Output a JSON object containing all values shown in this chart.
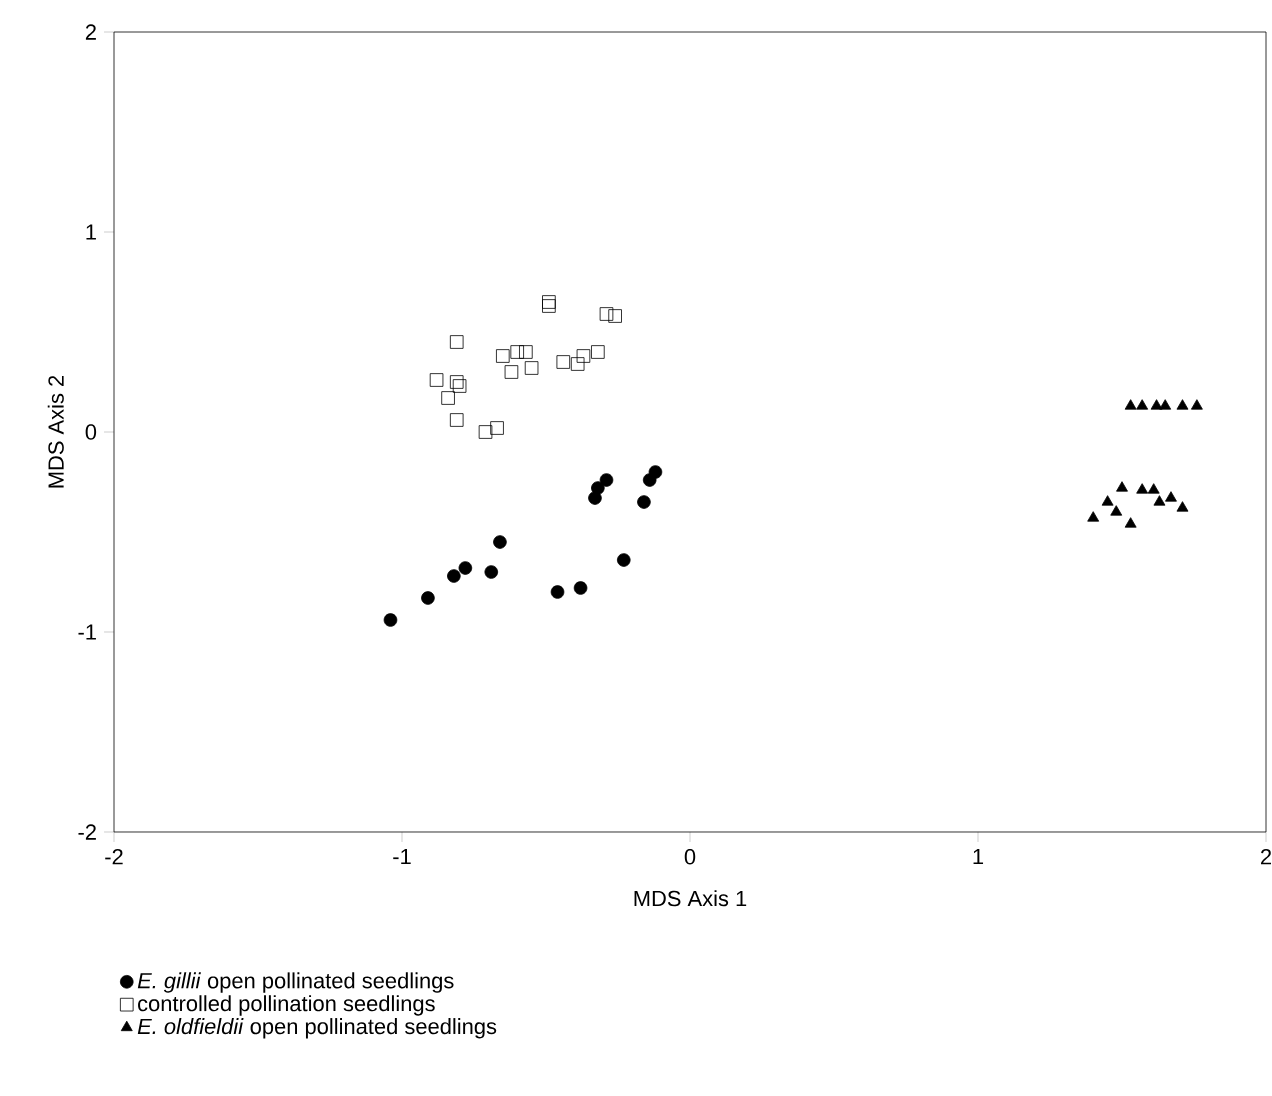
{
  "chart_data": {
    "type": "scatter",
    "xlabel": "MDS Axis 1",
    "ylabel": "MDS Axis 2",
    "xlim": [
      -2,
      2
    ],
    "ylim": [
      -2,
      2
    ],
    "xticks": [
      -2,
      -1,
      0,
      1,
      2
    ],
    "yticks": [
      -2,
      -1,
      0,
      1,
      2
    ],
    "grid": false,
    "legend": "bottom left",
    "series": [
      {
        "name": "*E. gillii* open pollinated seedlings",
        "color": "#000000",
        "marker": "circle",
        "x": [
          -1.04,
          -0.91,
          -0.82,
          -0.78,
          -0.69,
          -0.66,
          -0.46,
          -0.38,
          -0.23,
          -0.33,
          -0.32,
          -0.29,
          -0.16,
          -0.14,
          -0.12
        ],
        "values": [
          -0.94,
          -0.83,
          -0.72,
          -0.68,
          -0.7,
          -0.55,
          -0.8,
          -0.78,
          -0.64,
          -0.33,
          -0.28,
          -0.24,
          -0.35,
          -0.24,
          -0.2
        ]
      },
      {
        "name": "controlled pollination seedlings",
        "color": "#000000",
        "marker": "square",
        "x": [
          -0.81,
          -0.88,
          -0.81,
          -0.8,
          -0.84,
          -0.81,
          -0.71,
          -0.67,
          -0.65,
          -0.6,
          -0.57,
          -0.62,
          -0.55,
          -0.49,
          -0.49,
          -0.44,
          -0.39,
          -0.37,
          -0.32,
          -0.29,
          -0.26
        ],
        "values": [
          0.45,
          0.26,
          0.25,
          0.23,
          0.17,
          0.06,
          0.0,
          0.02,
          0.38,
          0.4,
          0.4,
          0.3,
          0.32,
          0.63,
          0.65,
          0.35,
          0.34,
          0.38,
          0.4,
          0.59,
          0.58
        ]
      },
      {
        "name": "*E. oldfieldii* open pollinated seedlings",
        "color": "#000000",
        "marker": "triangle",
        "x": [
          1.53,
          1.57,
          1.62,
          1.65,
          1.71,
          1.76,
          1.4,
          1.45,
          1.5,
          1.53,
          1.57,
          1.61,
          1.63,
          1.67,
          1.71,
          1.48
        ],
        "values": [
          0.13,
          0.13,
          0.13,
          0.13,
          0.13,
          0.13,
          -0.43,
          -0.35,
          -0.28,
          -0.46,
          -0.29,
          -0.29,
          -0.35,
          -0.33,
          -0.38,
          -0.4
        ]
      }
    ]
  }
}
